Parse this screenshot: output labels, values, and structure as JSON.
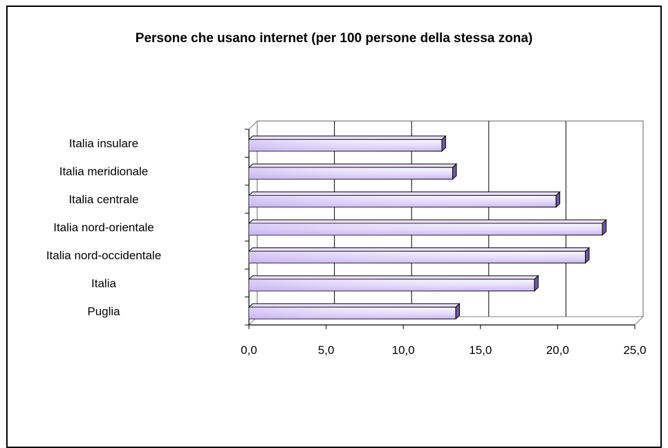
{
  "chart_data": {
    "type": "bar",
    "orientation": "horizontal",
    "title": "Persone che usano internet (per 100 persone della stessa zona)",
    "categories": [
      "Italia insulare",
      "Italia meridionale",
      "Italia centrale",
      "Italia nord-orientale",
      "Italia nord-occidentale",
      "Italia",
      "Puglia"
    ],
    "values": [
      12.5,
      13.2,
      19.9,
      22.9,
      21.8,
      18.5,
      13.4
    ],
    "xlim": [
      0,
      25
    ],
    "xticks": [
      "0,0",
      "5,0",
      "10,0",
      "15,0",
      "20,0",
      "25,0"
    ],
    "grid": true,
    "legend": "none",
    "bar_color": "#d9ccf5",
    "bar_color_light": "#f7f3ff",
    "bar_side_color": "#6e5aa0"
  }
}
